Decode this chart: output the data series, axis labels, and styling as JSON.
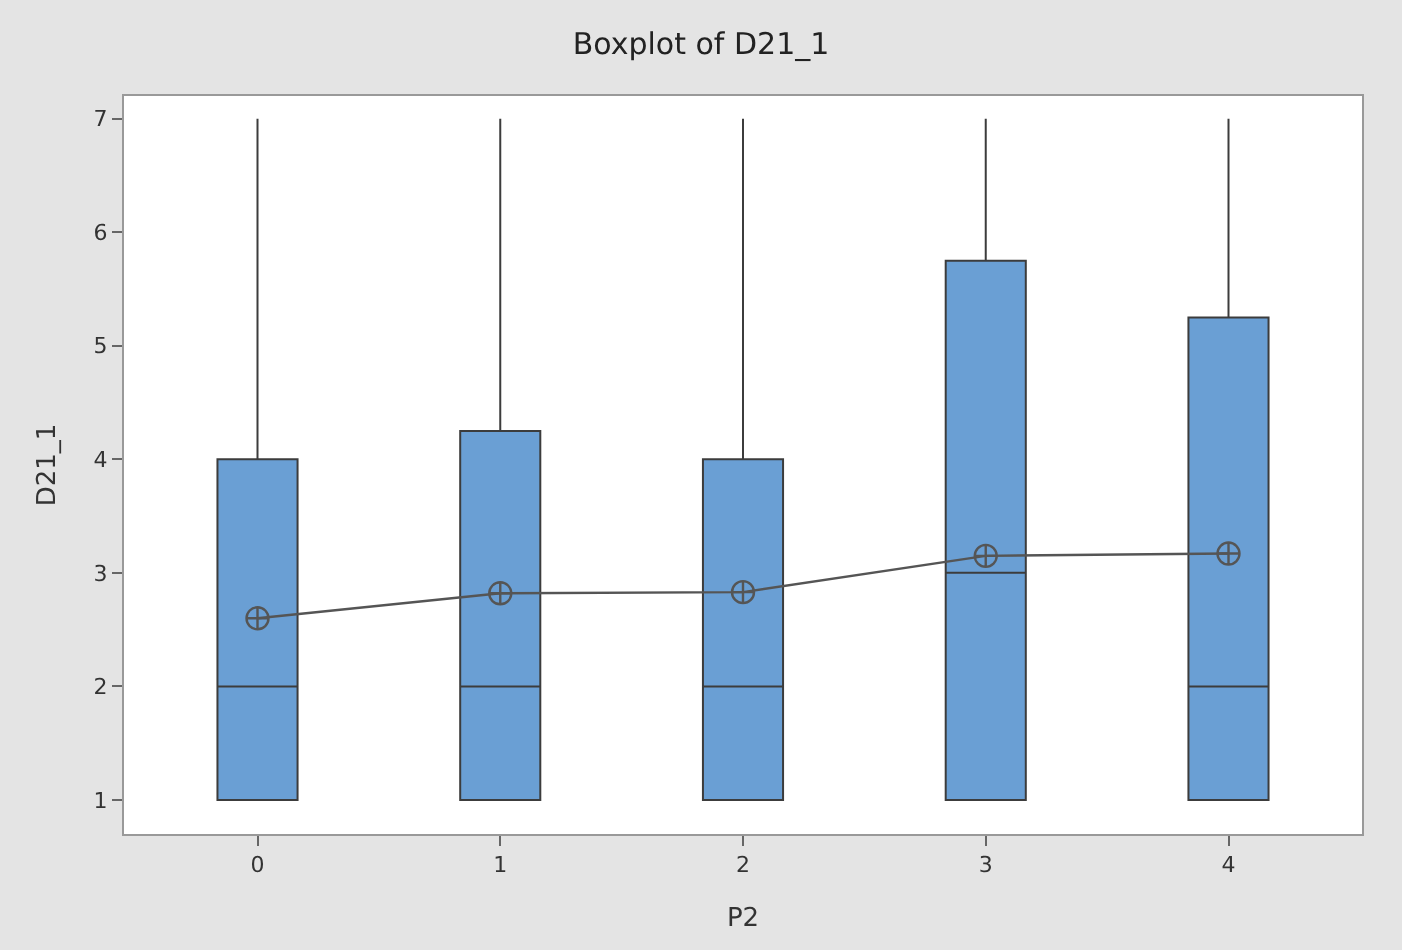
{
  "chart_data": {
    "type": "box",
    "title": "Boxplot of D21_1",
    "xlabel": "P2",
    "ylabel": "D21_1",
    "categories": [
      "0",
      "1",
      "2",
      "3",
      "4"
    ],
    "ylim": [
      0.7,
      7.2
    ],
    "yticks": [
      1,
      2,
      3,
      4,
      5,
      6,
      7
    ],
    "series": [
      {
        "color": "#6a9fd4",
        "boxes": [
          {
            "low": 1,
            "q1": 1,
            "median": 2,
            "q3": 4,
            "high": 7
          },
          {
            "low": 1,
            "q1": 1,
            "median": 2,
            "q3": 4.25,
            "high": 7
          },
          {
            "low": 1,
            "q1": 1,
            "median": 2,
            "q3": 4,
            "high": 7
          },
          {
            "low": 1,
            "q1": 1,
            "median": 3,
            "q3": 5.75,
            "high": 7
          },
          {
            "low": 1,
            "q1": 1,
            "median": 2,
            "q3": 5.25,
            "high": 7
          }
        ]
      },
      {
        "type": "line",
        "color": "#555555",
        "marker": "cross",
        "x": [
          "0",
          "1",
          "2",
          "3",
          "4"
        ],
        "values": [
          2.6,
          2.82,
          2.83,
          3.15,
          3.17
        ]
      }
    ]
  }
}
